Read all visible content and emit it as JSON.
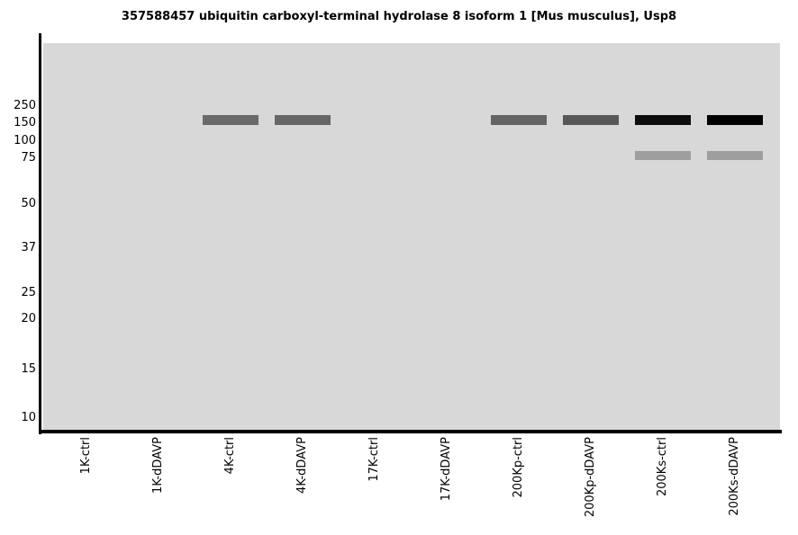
{
  "chart_data": {
    "type": "gel-blot",
    "title": "357588457 ubiquitin carboxyl-terminal hydrolase 8 isoform 1 [Mus musculus], Usp8",
    "xlabel": "",
    "ylabel": "",
    "y_axis": {
      "tick_labels": [
        "250",
        "150",
        "100",
        "75",
        "50",
        "37",
        "25",
        "20",
        "15",
        "10"
      ],
      "scale": "gel-migration (log-like), molecular weight markers",
      "range_hint": [
        10,
        300
      ]
    },
    "x_axis": {
      "tick_rotation_deg": 90,
      "grid": false
    },
    "lanes": [
      "1K-ctrl",
      "1K-dDAVP",
      "4K-ctrl",
      "4K-dDAVP",
      "17K-ctrl",
      "17K-dDAVP",
      "200Kp-ctrl",
      "200Kp-dDAVP",
      "200Ks-ctrl",
      "200Ks-dDAVP"
    ],
    "bands": [
      {
        "lane": "4K-ctrl",
        "mw": 150,
        "intensity": "medium",
        "color": "#6a6a6a"
      },
      {
        "lane": "4K-dDAVP",
        "mw": 150,
        "intensity": "medium",
        "color": "#666666"
      },
      {
        "lane": "200Kp-ctrl",
        "mw": 150,
        "intensity": "medium",
        "color": "#646464"
      },
      {
        "lane": "200Kp-dDAVP",
        "mw": 150,
        "intensity": "medium-dark",
        "color": "#575757"
      },
      {
        "lane": "200Ks-ctrl",
        "mw": 150,
        "intensity": "dark",
        "color": "#0d0d0d"
      },
      {
        "lane": "200Ks-dDAVP",
        "mw": 150,
        "intensity": "dark",
        "color": "#000000"
      },
      {
        "lane": "200Ks-ctrl",
        "mw": 75,
        "intensity": "light",
        "color": "#9e9e9e"
      },
      {
        "lane": "200Ks-dDAVP",
        "mw": 75,
        "intensity": "light",
        "color": "#9e9e9e"
      }
    ],
    "colors": {
      "gel_background": "#d8d8d8",
      "axis": "#000000",
      "text": "#000000",
      "page_background": "#ffffff"
    }
  }
}
